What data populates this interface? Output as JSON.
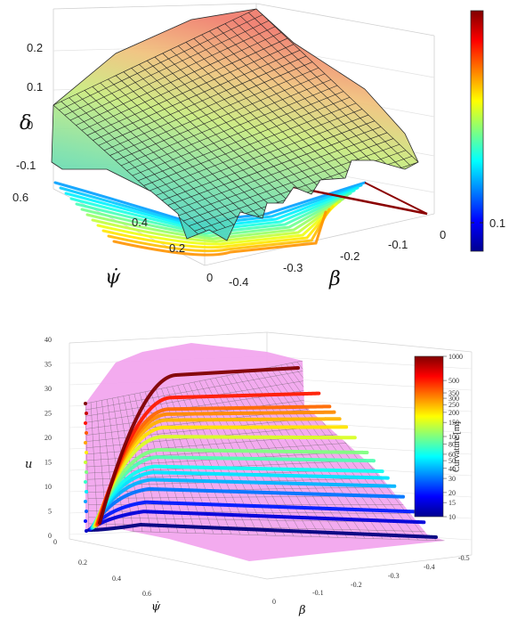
{
  "chart_data": [
    {
      "type": "surface",
      "title": "",
      "xlabel": "β",
      "ylabel": "ψ̇",
      "zlabel": "δ",
      "x_ticks": [
        "-0.4",
        "-0.3",
        "-0.2",
        "-0.1",
        "0"
      ],
      "y_ticks": [
        "0",
        "0.2",
        "0.4",
        "0.6"
      ],
      "z_ticks": [
        "-0.1",
        "0",
        "0.1",
        "0.2"
      ],
      "xlim": [
        -0.4,
        0
      ],
      "ylim": [
        0,
        0.6
      ],
      "zlim": [
        -0.15,
        0.22
      ],
      "grid": true,
      "colorbar": {
        "ticks": [
          "0.1"
        ],
        "colormap": "jet",
        "placement": "right"
      },
      "contour_floor": true
    },
    {
      "type": "surface",
      "title": "",
      "xlabel": "β",
      "ylabel": "ψ̇",
      "zlabel": "u",
      "x_ticks": [
        "0",
        "-0.1",
        "-0.2",
        "-0.3",
        "-0.4",
        "-0.5"
      ],
      "y_ticks": [
        "0",
        "0.2",
        "0.4",
        "0.6"
      ],
      "z_ticks": [
        "0",
        "5",
        "10",
        "15",
        "20",
        "25",
        "30",
        "35",
        "40"
      ],
      "xlim": [
        -0.5,
        0
      ],
      "ylim": [
        0,
        0.7
      ],
      "zlim": [
        0,
        45
      ],
      "grid": true,
      "surface_color": "#f2a6ee",
      "colorbar": {
        "label": "Curvature [m]",
        "ticks": [
          "1000",
          "500",
          "350",
          "300",
          "250",
          "200",
          "150",
          "100",
          "80",
          "60",
          "50",
          "40",
          "30",
          "20",
          "15",
          "10"
        ],
        "colormap": "jet",
        "placement": "top-right"
      },
      "curvature_lines": [
        10,
        15,
        20,
        30,
        40,
        50,
        60,
        80,
        100,
        150,
        200,
        250,
        300,
        350,
        500,
        1000
      ]
    }
  ]
}
